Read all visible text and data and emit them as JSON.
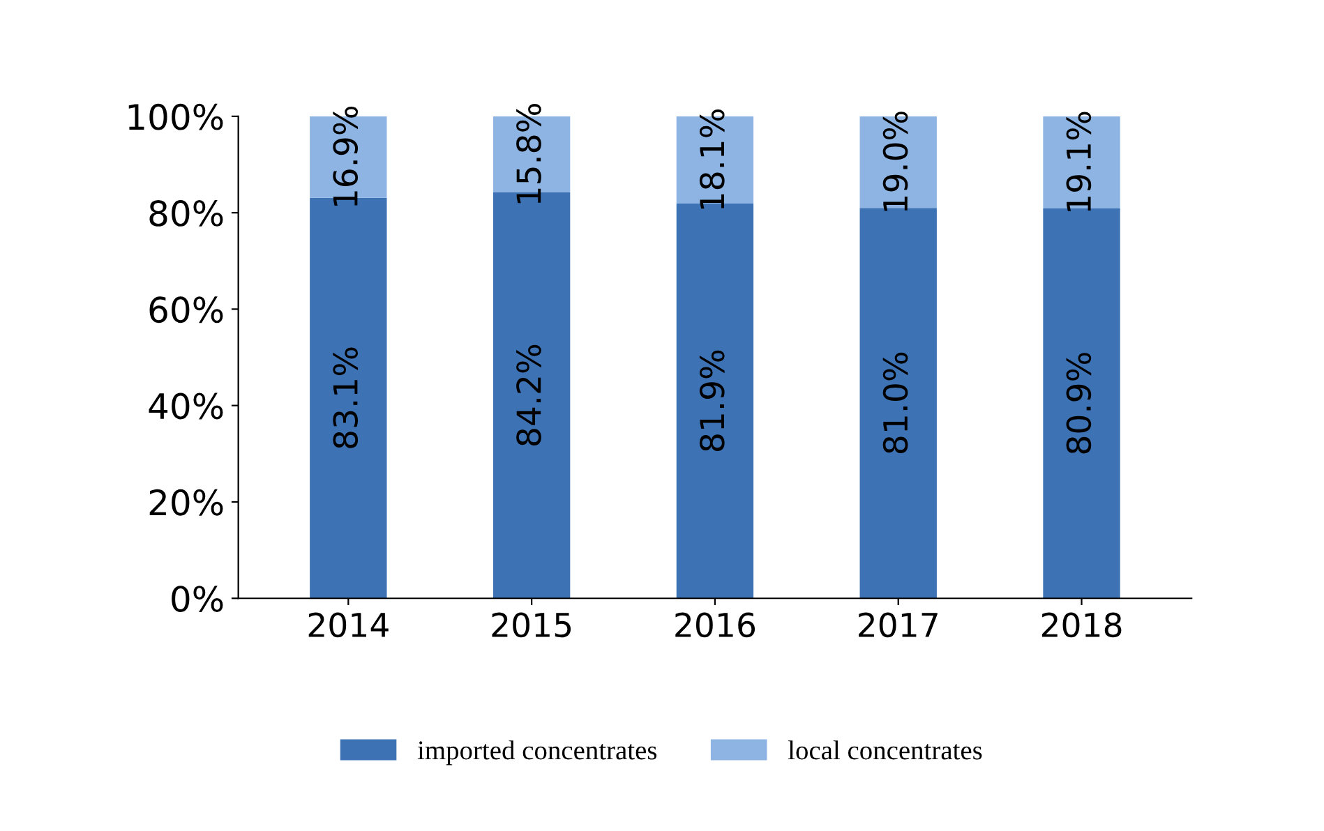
{
  "chart_data": {
    "type": "bar",
    "stacked": true,
    "categories": [
      "2014",
      "2015",
      "2016",
      "2017",
      "2018"
    ],
    "series": [
      {
        "name": "imported concentrates",
        "color": "#3d72b4",
        "values": [
          83.1,
          84.2,
          81.9,
          81.0,
          80.9
        ],
        "value_labels": [
          "83.1%",
          "84.2%",
          "81.9%",
          "81.0%",
          "80.9%"
        ]
      },
      {
        "name": "local concentrates",
        "color": "#8db4e2",
        "values": [
          16.9,
          15.8,
          18.1,
          19.0,
          19.1
        ],
        "value_labels": [
          "16.9%",
          "15.8%",
          "18.1%",
          "19.0%",
          "19.1%"
        ]
      }
    ],
    "ylim": [
      0,
      100
    ],
    "yticks": [
      {
        "value": 0,
        "label": "0%"
      },
      {
        "value": 20,
        "label": "20%"
      },
      {
        "value": 40,
        "label": "40%"
      },
      {
        "value": 60,
        "label": "60%"
      },
      {
        "value": 80,
        "label": "80%"
      },
      {
        "value": 100,
        "label": "100%"
      }
    ],
    "grid": false,
    "legend": "bottom"
  }
}
